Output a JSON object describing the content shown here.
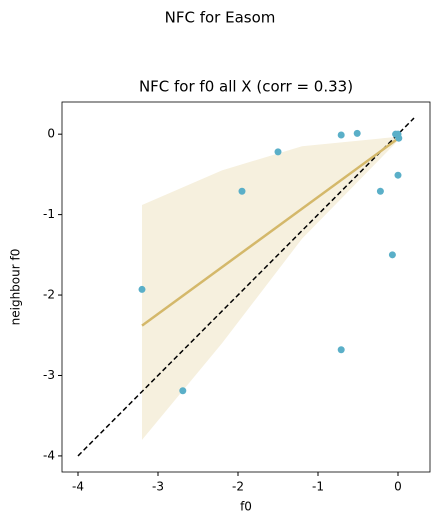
{
  "chart_data": {
    "type": "scatter",
    "suptitle": "NFC for Easom",
    "title": "NFC for f0 all X (corr = 0.33)",
    "xlabel": "f0",
    "ylabel": "neighbour f0",
    "xlim": [
      -4.2,
      0.4
    ],
    "ylim": [
      -4.2,
      0.4
    ],
    "xticks": [
      -4,
      -3,
      -2,
      -1,
      0
    ],
    "yticks": [
      -4,
      -3,
      -2,
      -1,
      0
    ],
    "series": [
      {
        "name": "points",
        "color": "#5aafc8",
        "x": [
          -3.2,
          -2.69,
          -1.95,
          -1.5,
          -0.71,
          -0.51,
          -0.22,
          -0.07,
          -0.71,
          0.0,
          -0.03,
          0.01,
          0.0
        ],
        "y": [
          -1.93,
          -3.19,
          -0.71,
          -0.22,
          -0.01,
          0.01,
          -0.71,
          -1.5,
          -2.68,
          -0.51,
          0.0,
          -0.05,
          0.0
        ]
      }
    ],
    "regression": {
      "color": "#d4b86a",
      "band_color": "#f6f0de",
      "x": [
        -3.2,
        0.02
      ],
      "y": [
        -2.38,
        -0.04
      ],
      "band_x": [
        -3.2,
        -2.2,
        -1.2,
        0.02
      ],
      "band_upper": [
        -0.88,
        -0.45,
        -0.15,
        -0.03
      ],
      "band_lower": [
        -3.8,
        -2.6,
        -1.3,
        -0.06
      ]
    },
    "identity": {
      "x": [
        -4,
        0.2
      ],
      "y": [
        -4,
        0.2
      ],
      "color": "#000000"
    }
  }
}
